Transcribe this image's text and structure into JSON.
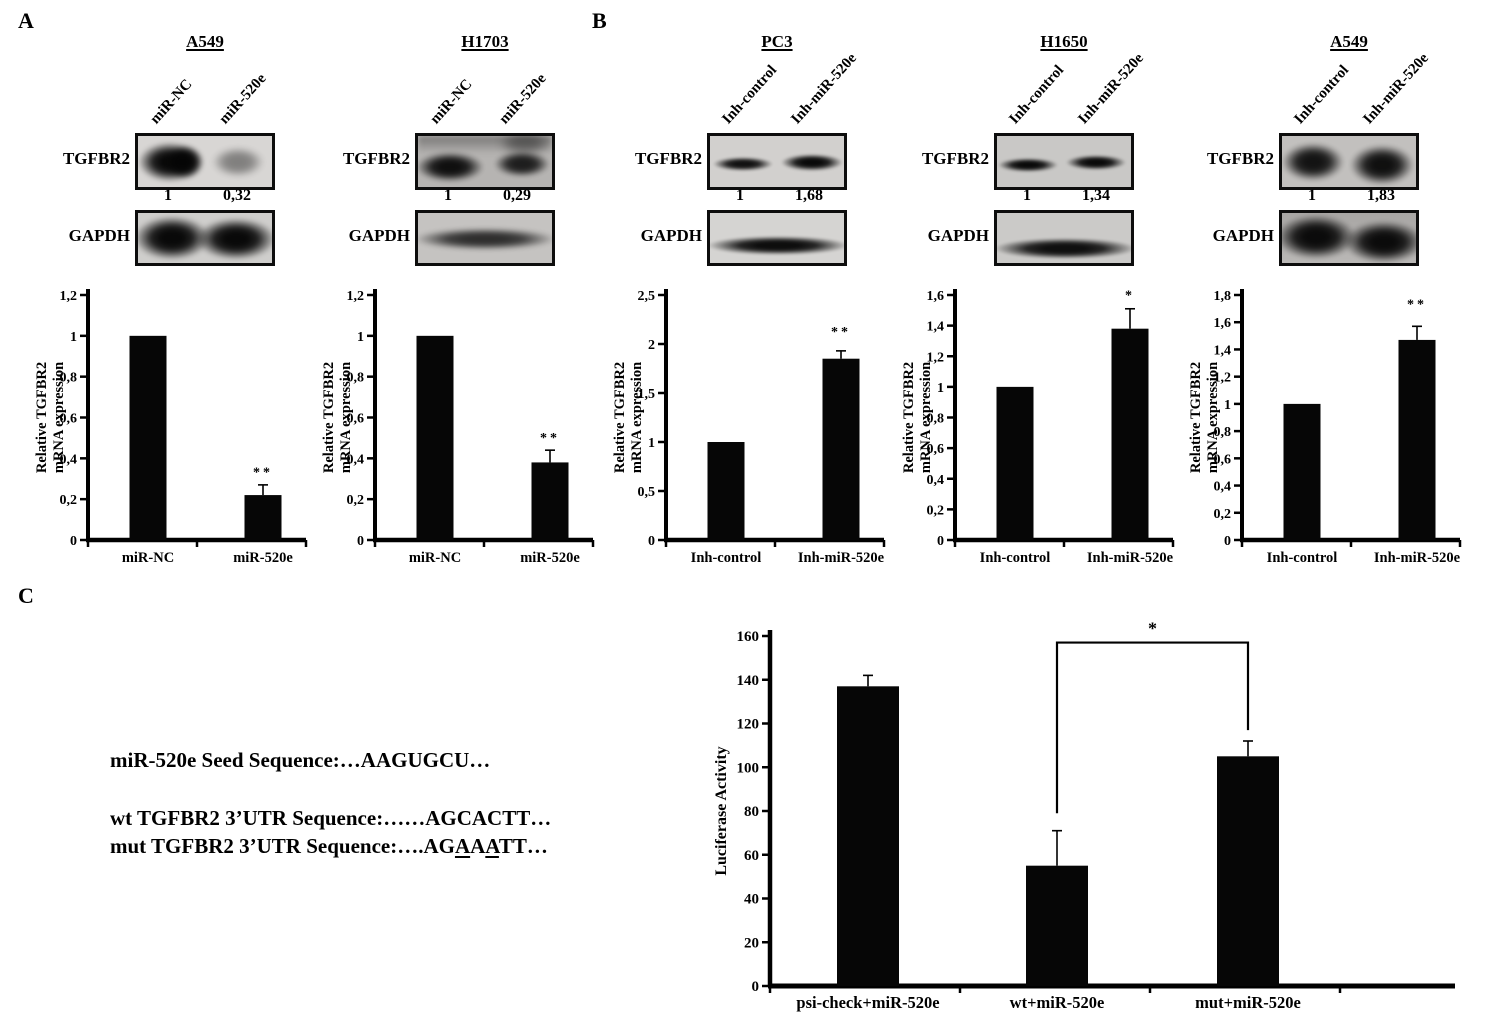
{
  "panels": {
    "A": {
      "label": "A",
      "groups": [
        {
          "cell_line": "A549",
          "lane_labels": [
            "miR-NC",
            "miR-520e"
          ],
          "blots": [
            {
              "protein": "TGFBR2",
              "values": [
                "1",
                "0,32"
              ]
            },
            {
              "protein": "GAPDH",
              "values": []
            }
          ],
          "chart_index": 0
        },
        {
          "cell_line": "H1703",
          "lane_labels": [
            "miR-NC",
            "miR-520e"
          ],
          "blots": [
            {
              "protein": "TGFBR2",
              "values": [
                "1",
                "0,29"
              ]
            },
            {
              "protein": "GAPDH",
              "values": []
            }
          ],
          "chart_index": 1
        }
      ]
    },
    "B": {
      "label": "B",
      "groups": [
        {
          "cell_line": "PC3",
          "lane_labels": [
            "Inh-control",
            "Inh-miR-520e"
          ],
          "blots": [
            {
              "protein": "TGFBR2",
              "values": [
                "1",
                "1,68"
              ]
            },
            {
              "protein": "GAPDH",
              "values": []
            }
          ],
          "chart_index": 2
        },
        {
          "cell_line": "H1650",
          "lane_labels": [
            "Inh-control",
            "Inh-miR-520e"
          ],
          "blots": [
            {
              "protein": "TGFBR2",
              "values": [
                "1",
                "1,34"
              ]
            },
            {
              "protein": "GAPDH",
              "values": []
            }
          ],
          "chart_index": 3
        },
        {
          "cell_line": "A549",
          "lane_labels": [
            "Inh-control",
            "Inh-miR-520e"
          ],
          "blots": [
            {
              "protein": "TGFBR2",
              "values": [
                "1",
                "1,83"
              ]
            },
            {
              "protein": "GAPDH",
              "values": []
            }
          ],
          "chart_index": 4
        }
      ]
    },
    "C": {
      "label": "C",
      "sequences": [
        "miR-520e Seed Sequence:…AAGUGCU…",
        "wt TGFBR2 3’UTR Sequence:……AGCACTT…",
        "mut TGFBR2 3’UTR Sequence:….AG[A]A[A]TT…"
      ],
      "chart_index": 5
    }
  },
  "chart_data": [
    {
      "type": "bar",
      "panel": "A",
      "cell_line": "A549",
      "ylabel_lines": [
        "Relative TGFBR2",
        "mRNA expression"
      ],
      "categories": [
        "miR-NC",
        "miR-520e"
      ],
      "values": [
        1,
        0.22
      ],
      "errors": [
        0,
        0.05
      ],
      "ymax": 1.2,
      "ylim": [
        0,
        1.2
      ],
      "ticks": [
        "0",
        "0,2",
        "0,4",
        "0,6",
        "0,8",
        "1",
        "1,2"
      ],
      "sig": {
        "bar": 1,
        "label": "**",
        "y": 0.31
      }
    },
    {
      "type": "bar",
      "panel": "A",
      "cell_line": "H1703",
      "ylabel_lines": [
        "Relative TGFBR2",
        "mRNA expression"
      ],
      "categories": [
        "miR-NC",
        "miR-520e"
      ],
      "values": [
        1,
        0.38
      ],
      "errors": [
        0,
        0.06
      ],
      "ymax": 1.2,
      "ylim": [
        0,
        1.2
      ],
      "ticks": [
        "0",
        "0,2",
        "0,4",
        "0,6",
        "0,8",
        "1",
        "1,2"
      ],
      "sig": {
        "bar": 1,
        "label": "**",
        "y": 0.48
      }
    },
    {
      "type": "bar",
      "panel": "B",
      "cell_line": "PC3",
      "ylabel_lines": [
        "Relative TGFBR2",
        "mRNA expression"
      ],
      "categories": [
        "Inh-control",
        "Inh-miR-520e"
      ],
      "values": [
        1,
        1.85
      ],
      "errors": [
        0,
        0.08
      ],
      "ymax": 2.5,
      "ylim": [
        0,
        2.5
      ],
      "ticks": [
        "0",
        "0,5",
        "1",
        "1,5",
        "2",
        "2,5"
      ],
      "sig": {
        "bar": 1,
        "label": "**",
        "y": 2.08
      }
    },
    {
      "type": "bar",
      "panel": "B",
      "cell_line": "H1650",
      "ylabel_lines": [
        "Relative TGFBR2",
        "mRNA expression"
      ],
      "categories": [
        "Inh-control",
        "Inh-miR-520e"
      ],
      "values": [
        1,
        1.38
      ],
      "errors": [
        0,
        0.13
      ],
      "ymax": 1.6,
      "ylim": [
        0,
        1.6
      ],
      "ticks": [
        "0",
        "0,2",
        "0,4",
        "0,6",
        "0,8",
        "1",
        "1,2",
        "1,4",
        "1,6"
      ],
      "sig": {
        "bar": 1,
        "label": "*",
        "y": 1.57
      }
    },
    {
      "type": "bar",
      "panel": "B",
      "cell_line": "A549",
      "ylabel_lines": [
        "Relative TGFBR2",
        "mRNA expression"
      ],
      "categories": [
        "Inh-control",
        "Inh-miR-520e"
      ],
      "values": [
        1,
        1.47
      ],
      "errors": [
        0,
        0.1
      ],
      "ymax": 1.8,
      "ylim": [
        0,
        1.8
      ],
      "ticks": [
        "0",
        "0,2",
        "0,4",
        "0,6",
        "0,8",
        "1",
        "1,2",
        "1,4",
        "1,6",
        "1,8"
      ],
      "sig": {
        "bar": 1,
        "label": "**",
        "y": 1.7
      }
    },
    {
      "type": "bar",
      "panel": "C",
      "cell_line": "",
      "ylabel_lines": [
        "Luciferase Activity"
      ],
      "categories": [
        "psi-check+miR-520e",
        "wt+miR-520e",
        "mut+miR-520e"
      ],
      "values": [
        137,
        55,
        105
      ],
      "errors": [
        5,
        16,
        7
      ],
      "ymax": 160,
      "ylim": [
        0,
        160
      ],
      "ticks": [
        "0",
        "20",
        "40",
        "60",
        "80",
        "100",
        "120",
        "140",
        "160"
      ],
      "bracket": {
        "bars": [
          1,
          2
        ],
        "top": 157,
        "legs": [
          79,
          117
        ],
        "label": "*"
      }
    }
  ]
}
